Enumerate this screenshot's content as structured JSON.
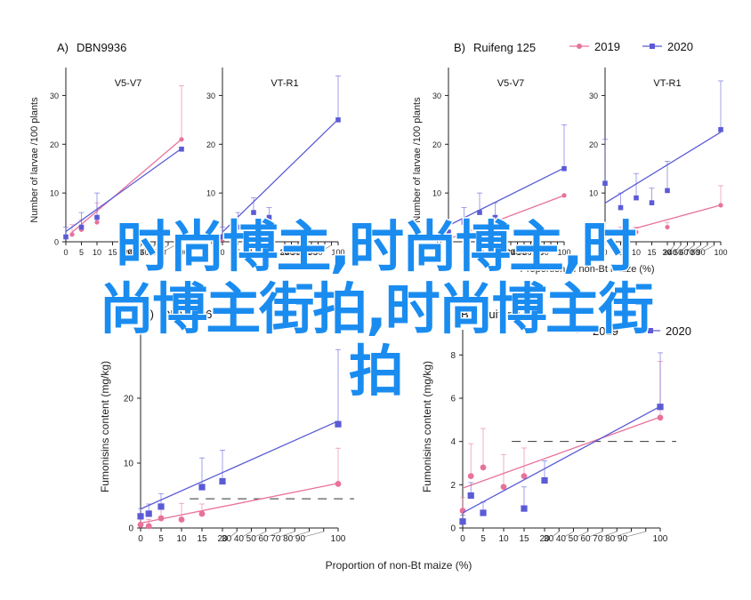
{
  "colors": {
    "s2019": "#e8729a",
    "s2020": "#5b5bd6",
    "axis": "#222222",
    "err": "#b0b0c8"
  },
  "legend": {
    "items": [
      {
        "label": "2019"
      },
      {
        "label": "2020"
      }
    ]
  },
  "overlay": {
    "line1": "时尚博主,时尚博主,时",
    "line2": "尚博主街拍,时尚博主街",
    "line3": "拍"
  },
  "chart_data": [
    {
      "type": "scatter",
      "panel_label": "A)",
      "title": "DBN9936",
      "ylabel": "Number of larvae /100 plants",
      "xlabel": "",
      "subpanels": [
        {
          "title": "V5-V7",
          "ylim": [
            0,
            35
          ],
          "yticks": [
            0,
            10,
            20,
            30
          ],
          "x_ticks": [
            0,
            5,
            10,
            15,
            20,
            30,
            40,
            50,
            60,
            70,
            80,
            90,
            100
          ],
          "series": [
            {
              "name": "2019",
              "x": [
                2,
                5,
                10,
                100
              ],
              "y": [
                1.5,
                2.5,
                4,
                21
              ],
              "err": [
                2,
                2,
                4,
                11
              ]
            },
            {
              "name": "2020",
              "x": [
                0,
                5,
                10,
                100
              ],
              "y": [
                1,
                3,
                5,
                19
              ],
              "err": [
                2,
                3,
                5,
                0
              ]
            }
          ]
        },
        {
          "title": "VT-R1",
          "ylim": [
            0,
            35
          ],
          "yticks": [
            0,
            10,
            20,
            30
          ],
          "x_ticks": [
            0,
            5,
            10,
            15,
            20,
            30,
            40,
            50,
            60,
            70,
            80,
            90,
            100
          ],
          "series": [
            {
              "name": "2019",
              "x": [
                0,
                5,
                10
              ],
              "y": [
                0.5,
                1,
                2
              ],
              "err": [
                1,
                1,
                1
              ]
            },
            {
              "name": "2020",
              "x": [
                0,
                5,
                10,
                15,
                100
              ],
              "y": [
                1,
                3,
                6,
                5,
                25
              ],
              "err": [
                2,
                3,
                3,
                2,
                9
              ]
            }
          ]
        }
      ]
    },
    {
      "type": "scatter",
      "panel_label": "B)",
      "title": "Ruifeng 125",
      "ylabel": "Number of larvae /100 plants",
      "xlabel": "Proportion of non-Bt maize (%)",
      "subpanels": [
        {
          "title": "V5-V7",
          "ylim": [
            0,
            35
          ],
          "yticks": [
            0,
            10,
            20,
            30
          ],
          "x_ticks": [
            0,
            5,
            10,
            15,
            20,
            30,
            40,
            50,
            60,
            70,
            80,
            90,
            100
          ],
          "series": [
            {
              "name": "2019",
              "x": [
                0,
                5,
                10,
                100
              ],
              "y": [
                0.5,
                1,
                1.5,
                9.5
              ],
              "err": [
                1,
                1,
                1,
                0
              ]
            },
            {
              "name": "2020",
              "x": [
                0,
                5,
                10,
                15,
                100
              ],
              "y": [
                2,
                4,
                6,
                5,
                15
              ],
              "err": [
                2,
                3,
                4,
                3,
                9
              ]
            }
          ]
        },
        {
          "title": "VT-R1",
          "ylim": [
            0,
            35
          ],
          "yticks": [
            0,
            10,
            20,
            30
          ],
          "x_ticks": [
            0,
            5,
            10,
            15,
            20,
            30,
            40,
            50,
            60,
            70,
            80,
            90,
            100
          ],
          "series": [
            {
              "name": "2019",
              "x": [
                5,
                10,
                20,
                100
              ],
              "y": [
                2,
                2,
                3,
                7.5
              ],
              "err": [
                1,
                1,
                1,
                4
              ]
            },
            {
              "name": "2020",
              "x": [
                0,
                5,
                10,
                15,
                20,
                100
              ],
              "y": [
                12,
                7,
                9,
                8,
                10.5,
                23
              ],
              "err": [
                9,
                3,
                5,
                3,
                6,
                10
              ]
            }
          ]
        }
      ]
    },
    {
      "type": "scatter",
      "panel_label": "A)",
      "title": "DBN9936",
      "ylabel": "Fumonisins content (mg/kg)",
      "xlabel": "Proportion of non-Bt maize (%)",
      "ylim": [
        0,
        30
      ],
      "yticks": [
        0,
        10,
        20
      ],
      "x_ticks": [
        0,
        5,
        10,
        15,
        20,
        30,
        40,
        50,
        60,
        70,
        80,
        90,
        100
      ],
      "threshold": 4.5,
      "series": [
        {
          "name": "2019",
          "x": [
            0,
            2,
            5,
            10,
            15,
            100
          ],
          "y": [
            0.5,
            0.3,
            1.5,
            1.3,
            2.2,
            6.8
          ],
          "err": [
            1.5,
            1,
            1.5,
            2.5,
            1.5,
            5.5
          ]
        },
        {
          "name": "2020",
          "x": [
            0,
            2,
            5,
            15,
            20,
            100
          ],
          "y": [
            1.8,
            2.2,
            3.3,
            6.3,
            7.2,
            16
          ],
          "err": [
            1.2,
            1.5,
            2,
            4.5,
            4.8,
            11.5
          ]
        }
      ]
    },
    {
      "type": "scatter",
      "panel_label": "B)",
      "title": "Ruifeng 125",
      "ylabel": "Fumonisins content (mg/kg)",
      "xlabel": "",
      "ylim": [
        0,
        9
      ],
      "yticks": [
        0,
        2,
        4,
        6,
        8
      ],
      "x_ticks": [
        0,
        5,
        10,
        15,
        20,
        30,
        40,
        50,
        60,
        70,
        80,
        90,
        100
      ],
      "threshold": 4,
      "series": [
        {
          "name": "2019",
          "x": [
            0,
            2,
            5,
            10,
            15,
            100
          ],
          "y": [
            0.8,
            2.4,
            2.8,
            1.9,
            2.4,
            5.1
          ],
          "err": [
            0.6,
            1.5,
            1.8,
            1.5,
            1.3,
            2.6
          ]
        },
        {
          "name": "2020",
          "x": [
            0,
            2,
            5,
            15,
            20,
            100
          ],
          "y": [
            0.3,
            1.5,
            0.7,
            0.9,
            2.2,
            5.6
          ],
          "err": [
            0.3,
            0.6,
            0.5,
            1,
            0.9,
            2.5
          ]
        }
      ]
    }
  ]
}
